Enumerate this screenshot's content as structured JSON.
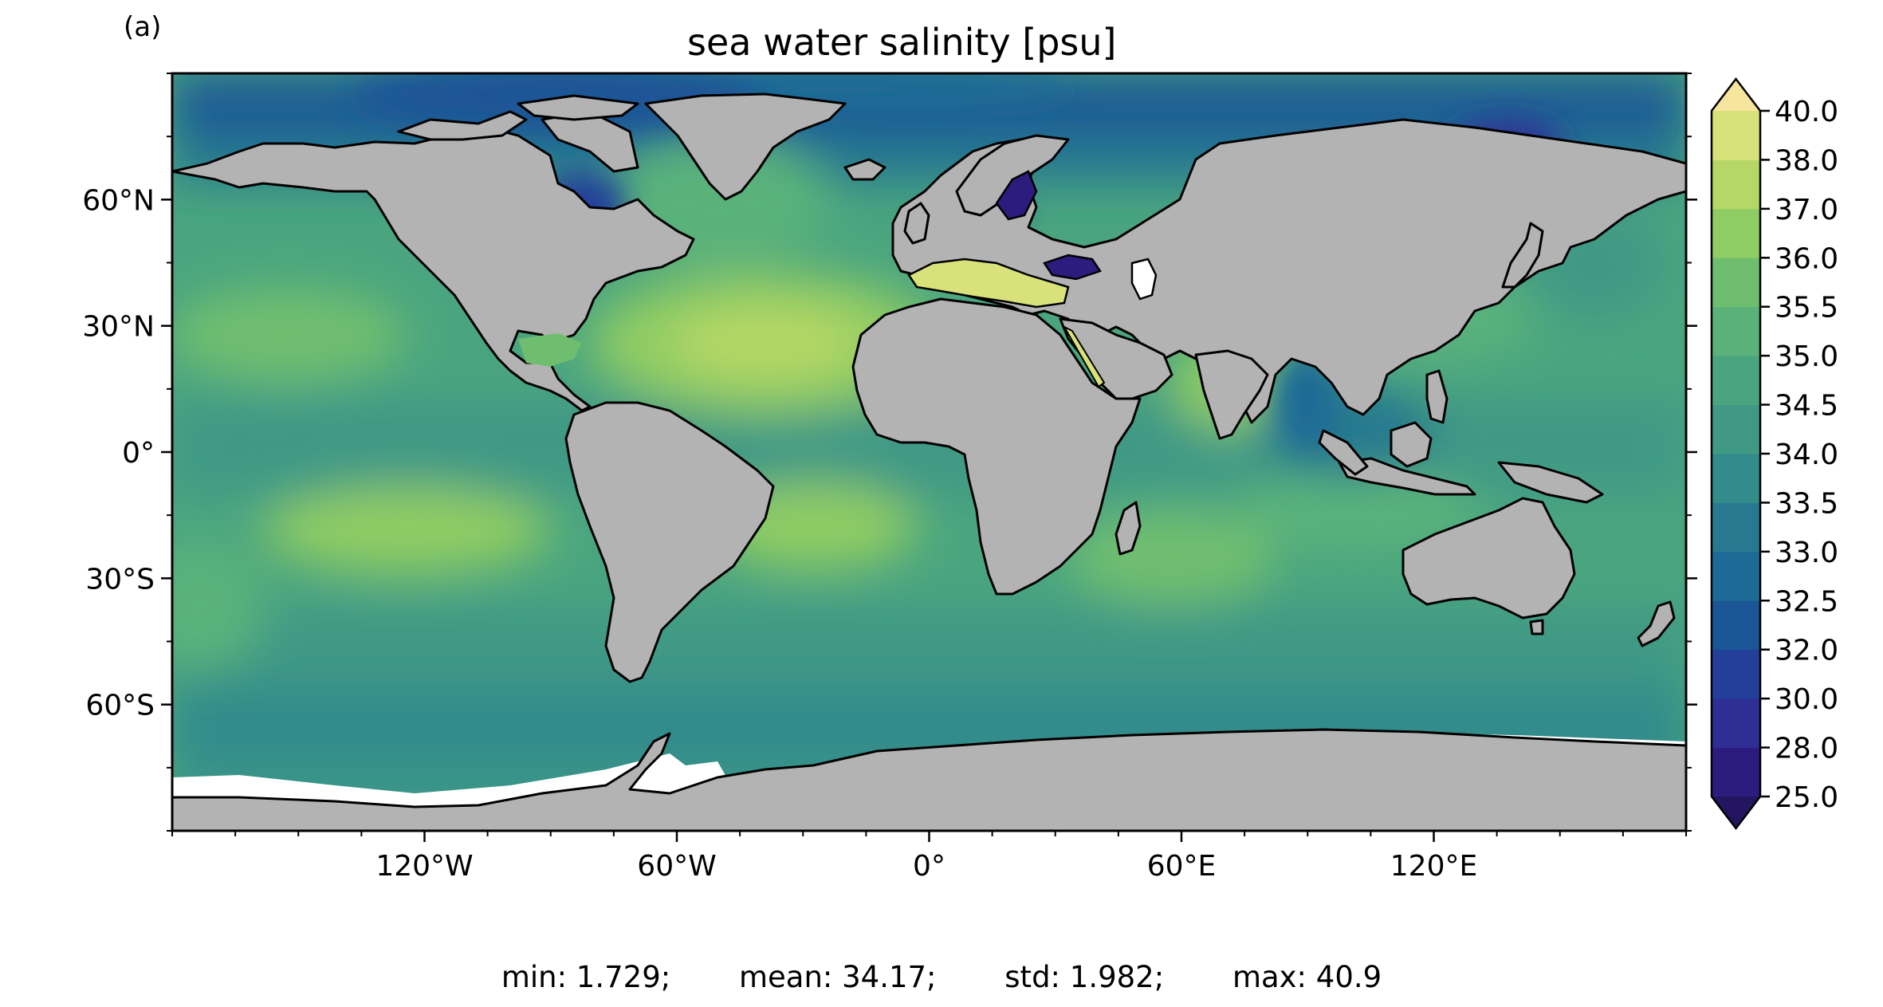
{
  "panel_label": "(a)",
  "title": "sea water salinity [psu]",
  "lat_ticks": [
    {
      "label": "60°N",
      "value": 60
    },
    {
      "label": "30°N",
      "value": 30
    },
    {
      "label": "0°",
      "value": 0
    },
    {
      "label": "30°S",
      "value": -30
    },
    {
      "label": "60°S",
      "value": -60
    }
  ],
  "lon_ticks": [
    {
      "label": "120°W",
      "value": -120
    },
    {
      "label": "60°W",
      "value": -60
    },
    {
      "label": "0°",
      "value": 0
    },
    {
      "label": "60°E",
      "value": 60
    },
    {
      "label": "120°E",
      "value": 120
    }
  ],
  "colorbar": {
    "levels": [
      "25.0",
      "28.0",
      "30.0",
      "32.0",
      "32.5",
      "33.0",
      "33.5",
      "34.0",
      "34.5",
      "35.0",
      "35.5",
      "36.0",
      "37.0",
      "38.0",
      "40.0"
    ],
    "colors": [
      "#2b1c7e",
      "#2e2e94",
      "#233f9a",
      "#1a5596",
      "#1d6a96",
      "#27798f",
      "#338b8b",
      "#3f9985",
      "#4aa57f",
      "#5ab27a",
      "#6fbe6f",
      "#8fcc63",
      "#b5d765",
      "#d9e27a"
    ],
    "under_color": "#241560",
    "over_color": "#f6e59c"
  },
  "stats": {
    "min": "min: 1.729;",
    "mean": "mean: 34.17;",
    "std": "std: 1.982;",
    "max": "max: 40.9"
  },
  "colors": {
    "land": "#b3b3b3",
    "ice": "#ffffff",
    "ocean_base": "#4aa57f"
  }
}
